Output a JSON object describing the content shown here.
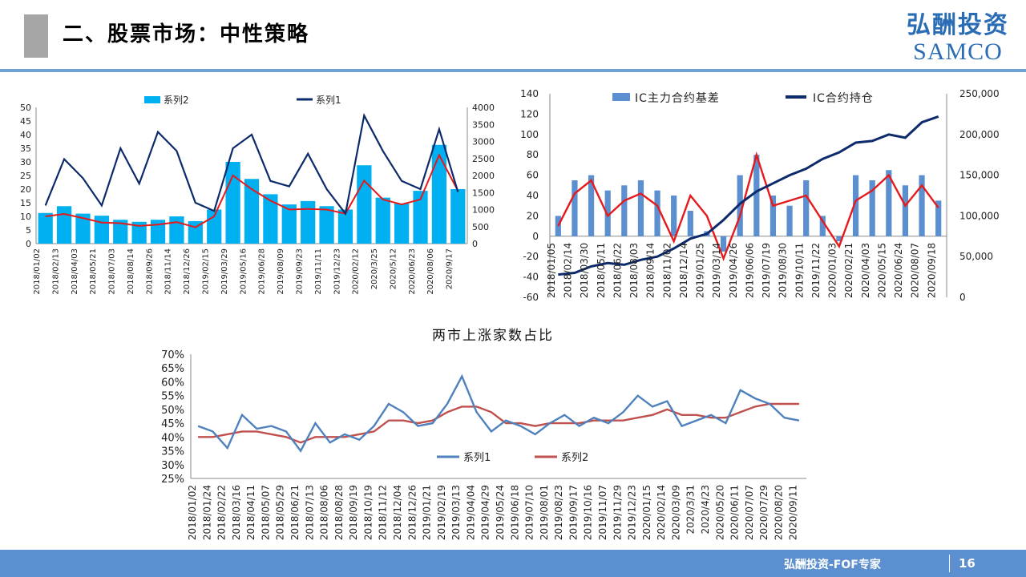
{
  "header": {
    "title": "二、股票市场：中性策略"
  },
  "logo": {
    "cn": "弘酬投资",
    "en": "SAMCO"
  },
  "footer": {
    "label": "弘酬投资-FOF专家",
    "page": "16"
  },
  "colors": {
    "accent": "#5b8fcf",
    "bar_blue": "#00b0f0",
    "navy": "#0d2a6b",
    "red": "#e41a1c",
    "line_blue": "#4f81bd",
    "line_red": "#c0504d",
    "bar_ic": "#5b8fcf"
  },
  "chart_data": [
    {
      "type": "bar+line",
      "title": "",
      "categories": [
        "2018/01/02",
        "2018/02/13",
        "2018/04/03",
        "2018/05/21",
        "2018/07/03",
        "2018/08/14",
        "2018/09/26",
        "2018/11/14",
        "2018/12/26",
        "2019/02/15",
        "2019/03/29",
        "2019/05/16",
        "2019/06/28",
        "2019/08/09",
        "2019/09/23",
        "2019/11/11",
        "2019/12/23",
        "2020/02/12",
        "2020/3/25",
        "2020/5/12",
        "2020/06/23",
        "2020/08/06",
        "2020/9/17"
      ],
      "y_left": {
        "min": 0,
        "max": 50,
        "ticks": [
          "0",
          "5",
          "10",
          "15",
          "20",
          "25",
          "30",
          "35",
          "40",
          "45",
          "50"
        ]
      },
      "y_right": {
        "min": 0,
        "max": 4000,
        "ticks": [
          "0",
          "500",
          "1000",
          "1500",
          "2000",
          "2500",
          "3000",
          "3500",
          "4000"
        ]
      },
      "series": [
        {
          "name": "系列2",
          "kind": "bar",
          "axis": "right",
          "values": [
            900,
            1100,
            880,
            820,
            700,
            640,
            700,
            800,
            660,
            1000,
            2400,
            1900,
            1450,
            1150,
            1250,
            1100,
            1000,
            2300,
            1350,
            1180,
            1550,
            2900,
            1600
          ]
        },
        {
          "name": "系列1",
          "kind": "line",
          "axis": "left",
          "values": [
            14,
            31,
            24,
            14,
            35,
            22,
            41,
            34,
            15,
            12,
            35,
            40,
            23,
            21,
            33,
            20,
            11,
            47,
            34,
            23,
            20,
            42,
            19
          ]
        },
        {
          "name": "",
          "kind": "line",
          "axis": "right",
          "values": [
            800,
            870,
            750,
            620,
            600,
            520,
            560,
            630,
            480,
            800,
            2000,
            1600,
            1260,
            1000,
            1020,
            1000,
            880,
            1850,
            1300,
            1150,
            1300,
            2600,
            1550
          ]
        }
      ]
    },
    {
      "type": "bar+line",
      "title": "",
      "categories": [
        "2018/01/05",
        "2018/02/14",
        "2018/03/30",
        "2018/05/11",
        "2018/06/22",
        "2018/08/03",
        "2018/09/14",
        "2018/11/02",
        "2018/12/14",
        "2019/01/25",
        "2019/03/14",
        "2019/04/26",
        "2019/06/06",
        "2019/07/19",
        "2019/08/30",
        "2019/10/11",
        "2019/11/22",
        "2020/01/03",
        "2020/02/21",
        "2020/04/03",
        "2020/05/15",
        "2020/06/24",
        "2020/08/07",
        "2020/09/18"
      ],
      "y_left": {
        "min": -60,
        "max": 140,
        "ticks": [
          "-60",
          "-40",
          "-20",
          "0",
          "20",
          "40",
          "60",
          "80",
          "100",
          "120",
          "140"
        ]
      },
      "y_right": {
        "min": 0,
        "max": 250000,
        "ticks": [
          "0",
          "50,000",
          "100,000",
          "150,000",
          "200,000",
          "250,000"
        ]
      },
      "series": [
        {
          "name": "IC主力合约基差",
          "kind": "bar",
          "axis": "left",
          "values": [
            20,
            55,
            60,
            45,
            50,
            55,
            45,
            40,
            25,
            5,
            -15,
            60,
            80,
            40,
            30,
            55,
            20,
            -5,
            60,
            55,
            65,
            50,
            60,
            35
          ]
        },
        {
          "name": "IC合约持仓",
          "kind": "line",
          "axis": "right",
          "values": [
            28000,
            30000,
            38000,
            42000,
            40000,
            46000,
            50000,
            60000,
            72000,
            78000,
            95000,
            115000,
            130000,
            140000,
            150000,
            158000,
            170000,
            178000,
            190000,
            192000,
            200000,
            196000,
            215000,
            222000
          ]
        },
        {
          "name": "",
          "kind": "line",
          "axis": "left",
          "values": [
            10,
            42,
            55,
            20,
            35,
            42,
            30,
            -5,
            40,
            20,
            -22,
            20,
            80,
            30,
            35,
            40,
            15,
            -10,
            35,
            45,
            60,
            30,
            50,
            28
          ]
        }
      ]
    },
    {
      "type": "line",
      "title": "两市上涨家数占比",
      "categories": [
        "2018/01/02",
        "2018/01/24",
        "2018/02/22",
        "2018/03/16",
        "2018/04/11",
        "2018/05/07",
        "2018/05/29",
        "2018/06/21",
        "2018/07/13",
        "2018/08/06",
        "2018/08/28",
        "2018/09/19",
        "2018/10/19",
        "2018/11/12",
        "2018/12/04",
        "2018/12/26",
        "2019/01/21",
        "2019/02/19",
        "2019/03/13",
        "2019/04/04",
        "2019/04/29",
        "2019/05/24",
        "2019/06/18",
        "2019/07/10",
        "2019/08/01",
        "2019/08/23",
        "2019/09/17",
        "2019/10/16",
        "2019/11/07",
        "2019/11/29",
        "2019/12/23",
        "2020/01/15",
        "2020/02/14",
        "2020/03/09",
        "2020/3/31",
        "2020/4/23",
        "2020/05/20",
        "2020/06/11",
        "2020/07/07",
        "2020/07/29",
        "2020/08/20",
        "2020/09/11"
      ],
      "y": {
        "min": 25,
        "max": 70,
        "ticks": [
          "25%",
          "30%",
          "35%",
          "40%",
          "45%",
          "50%",
          "55%",
          "60%",
          "65%",
          "70%"
        ]
      },
      "series": [
        {
          "name": "系列1",
          "values": [
            44,
            42,
            36,
            48,
            43,
            44,
            42,
            35,
            45,
            38,
            41,
            39,
            44,
            52,
            49,
            44,
            45,
            52,
            62,
            49,
            42,
            46,
            44,
            41,
            45,
            48,
            44,
            47,
            45,
            49,
            55,
            51,
            53,
            44,
            46,
            48,
            45,
            57,
            54,
            52,
            47,
            46
          ]
        },
        {
          "name": "系列2",
          "values": [
            40,
            40,
            41,
            42,
            42,
            41,
            40,
            38,
            40,
            40,
            40,
            41,
            42,
            46,
            46,
            45,
            46,
            49,
            51,
            51,
            49,
            45,
            45,
            44,
            45,
            45,
            45,
            46,
            46,
            46,
            47,
            48,
            50,
            48,
            48,
            47,
            47,
            49,
            51,
            52,
            52,
            52
          ]
        }
      ]
    }
  ]
}
